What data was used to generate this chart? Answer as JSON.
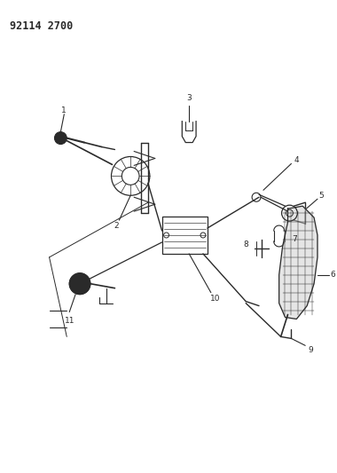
{
  "title": "92114 2700",
  "bg_color": "#ffffff",
  "line_color": "#2a2a2a",
  "title_fontsize": 8.5,
  "label_fontsize": 6.5,
  "fig_width": 3.8,
  "fig_height": 5.33,
  "dpi": 100
}
